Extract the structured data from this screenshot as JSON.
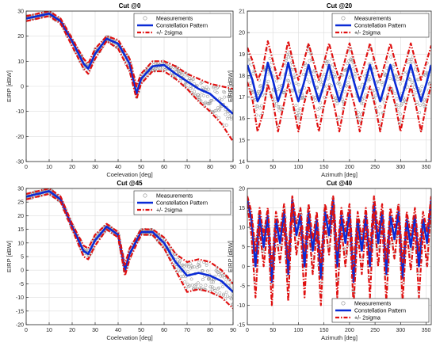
{
  "figure": {
    "ylabel": "EIRP [dBW]",
    "legend_labels": [
      "Measurements",
      "Constellation Pattern",
      "+/- 2sigma"
    ],
    "colors": {
      "measurements": "#8c8c8c",
      "pattern": "#0a2bd6",
      "sigma": "#e01010",
      "grid": "#dcdcdc"
    }
  },
  "chart_data": [
    {
      "type": "line",
      "title": "Cut @0",
      "xlabel": "Coelevation [deg]",
      "ylabel": "EIRP [dBW]",
      "xlim": [
        0,
        90
      ],
      "ylim": [
        -30,
        30
      ],
      "xticks": [
        0,
        10,
        20,
        30,
        40,
        50,
        60,
        70,
        80,
        90
      ],
      "yticks": [
        -30,
        -20,
        -10,
        0,
        10,
        20,
        30
      ],
      "grid": true,
      "legend": "top-right",
      "series": [
        {
          "name": "Constellation Pattern",
          "x": [
            0,
            5,
            10,
            15,
            20,
            25,
            27,
            30,
            35,
            40,
            45,
            48,
            50,
            55,
            60,
            65,
            70,
            75,
            80,
            85,
            90
          ],
          "y": [
            27,
            28,
            29,
            26,
            18,
            9,
            7,
            13,
            19,
            17,
            9,
            -3,
            3,
            8,
            8.5,
            5,
            2,
            -1,
            -3,
            -7,
            -11
          ]
        },
        {
          "name": "+/- 2sigma",
          "x": [
            0,
            5,
            10,
            15,
            20,
            25,
            27,
            30,
            35,
            40,
            45,
            48,
            50,
            55,
            60,
            65,
            70,
            75,
            80,
            85,
            90
          ],
          "y": [
            28,
            29,
            30,
            27,
            19,
            11,
            9,
            15,
            20,
            18.5,
            11,
            0,
            5,
            10,
            10,
            8,
            5,
            3,
            1,
            0,
            -1
          ]
        },
        {
          "name": "+/- 2sigma",
          "x": [
            0,
            5,
            10,
            15,
            20,
            25,
            27,
            30,
            35,
            40,
            45,
            48,
            50,
            55,
            60,
            65,
            70,
            75,
            80,
            85,
            90
          ],
          "y": [
            26,
            27,
            28,
            25,
            16,
            7,
            5,
            11,
            18,
            15,
            6,
            -5,
            1,
            6,
            6,
            3,
            -1,
            -6,
            -10,
            -15,
            -22
          ]
        }
      ]
    },
    {
      "type": "line",
      "title": "Cut @20",
      "xlabel": "Azimuth [deg]",
      "ylabel": "EIRP [dBW]",
      "xlim": [
        0,
        360
      ],
      "ylim": [
        14,
        21
      ],
      "xticks": [
        0,
        50,
        100,
        150,
        200,
        250,
        300,
        350
      ],
      "yticks": [
        14,
        15,
        16,
        17,
        18,
        19,
        20,
        21
      ],
      "grid": true,
      "legend": "top-right",
      "series": [
        {
          "name": "Constellation Pattern",
          "x": [
            0,
            10,
            20,
            30,
            40,
            50,
            60,
            70,
            80,
            90,
            100,
            110,
            120,
            130,
            140,
            150,
            160,
            170,
            180,
            190,
            200,
            210,
            220,
            230,
            240,
            250,
            260,
            270,
            280,
            290,
            300,
            310,
            320,
            330,
            340,
            350,
            360
          ],
          "y": [
            18.5,
            17.8,
            16.8,
            17.3,
            18.6,
            17.8,
            16.8,
            17.5,
            18.6,
            17.6,
            16.8,
            17.6,
            18.5,
            17.6,
            16.8,
            17.6,
            18.5,
            17.6,
            16.8,
            17.6,
            18.5,
            17.6,
            16.8,
            17.6,
            18.5,
            17.6,
            16.8,
            17.6,
            18.5,
            17.6,
            16.8,
            17.6,
            18.5,
            17.6,
            16.8,
            17.6,
            18.5
          ]
        },
        {
          "name": "+/- 2sigma",
          "x": [
            0,
            10,
            20,
            30,
            40,
            50,
            60,
            70,
            80,
            90,
            100,
            110,
            120,
            130,
            140,
            150,
            160,
            170,
            180,
            190,
            200,
            210,
            220,
            230,
            240,
            250,
            260,
            270,
            280,
            290,
            300,
            310,
            320,
            330,
            340,
            350,
            360
          ],
          "y": [
            19.3,
            18.7,
            17.8,
            18.3,
            19.6,
            18.7,
            17.8,
            18.5,
            19.6,
            18.6,
            17.8,
            18.6,
            19.5,
            18.6,
            17.8,
            18.6,
            19.5,
            18.6,
            17.8,
            18.6,
            19.5,
            18.6,
            17.8,
            18.6,
            19.5,
            18.6,
            17.8,
            18.6,
            19.5,
            18.6,
            17.8,
            18.6,
            19.5,
            18.6,
            17.8,
            18.6,
            19.4
          ]
        },
        {
          "name": "+/- 2sigma",
          "x": [
            0,
            10,
            20,
            30,
            40,
            50,
            60,
            70,
            80,
            90,
            100,
            110,
            120,
            130,
            140,
            150,
            160,
            170,
            180,
            190,
            200,
            210,
            220,
            230,
            240,
            250,
            260,
            270,
            280,
            290,
            300,
            310,
            320,
            330,
            340,
            350,
            360
          ],
          "y": [
            17.7,
            16.9,
            15.4,
            16.2,
            17.6,
            16.8,
            15.4,
            16.5,
            17.6,
            16.6,
            15.4,
            16.6,
            17.5,
            16.6,
            15.4,
            16.6,
            17.5,
            16.6,
            15.4,
            16.6,
            17.5,
            16.6,
            15.4,
            16.6,
            17.5,
            16.6,
            15.4,
            16.6,
            17.5,
            16.6,
            15.4,
            16.6,
            17.5,
            16.6,
            15.4,
            16.6,
            17.6
          ]
        }
      ]
    },
    {
      "type": "line",
      "title": "Cut @45",
      "xlabel": "Coelevation [deg]",
      "ylabel": "EIRP [dBW]",
      "xlim": [
        0,
        90
      ],
      "ylim": [
        -20,
        30
      ],
      "xticks": [
        0,
        10,
        20,
        30,
        40,
        50,
        60,
        70,
        80,
        90
      ],
      "yticks": [
        -20,
        -15,
        -10,
        -5,
        0,
        5,
        10,
        15,
        20,
        25,
        30
      ],
      "grid": true,
      "legend": "top-right",
      "series": [
        {
          "name": "Constellation Pattern",
          "x": [
            0,
            5,
            10,
            15,
            20,
            25,
            27,
            30,
            35,
            40,
            43,
            45,
            50,
            55,
            60,
            65,
            70,
            75,
            80,
            85,
            90
          ],
          "y": [
            27,
            28,
            29,
            26,
            16,
            7,
            6,
            11,
            16,
            13,
            0,
            6,
            14,
            14,
            10,
            3,
            -2,
            -1,
            -2,
            -4,
            -8
          ]
        },
        {
          "name": "+/- 2sigma",
          "x": [
            0,
            5,
            10,
            15,
            20,
            25,
            27,
            30,
            35,
            40,
            43,
            45,
            50,
            55,
            60,
            65,
            70,
            75,
            80,
            85,
            90
          ],
          "y": [
            28,
            29,
            30,
            27,
            17,
            9,
            8,
            13,
            17,
            14,
            2,
            8,
            15,
            15,
            12,
            6,
            3,
            4,
            3,
            0,
            -5
          ]
        },
        {
          "name": "+/- 2sigma",
          "x": [
            0,
            5,
            10,
            15,
            20,
            25,
            27,
            30,
            35,
            40,
            43,
            45,
            50,
            55,
            60,
            65,
            70,
            75,
            80,
            85,
            90
          ],
          "y": [
            26,
            27,
            28,
            25,
            15,
            5,
            4,
            9,
            15,
            12,
            -2,
            4,
            13,
            13,
            8,
            0,
            -8,
            -7,
            -8,
            -10,
            -14
          ]
        }
      ]
    },
    {
      "type": "line",
      "title": "Cut @40",
      "xlabel": "Azimuth [deg]",
      "ylabel": "EIRP [dBW]",
      "xlim": [
        0,
        360
      ],
      "ylim": [
        -15,
        20
      ],
      "xticks": [
        0,
        50,
        100,
        150,
        200,
        250,
        300,
        350
      ],
      "yticks": [
        -15,
        -10,
        -5,
        0,
        5,
        10,
        15,
        20
      ],
      "grid": true,
      "legend": "bottom-right",
      "series": [
        {
          "name": "Constellation Pattern",
          "x": [
            0,
            8,
            16,
            24,
            32,
            40,
            48,
            56,
            64,
            72,
            80,
            88,
            96,
            104,
            112,
            120,
            128,
            136,
            144,
            152,
            160,
            168,
            176,
            184,
            192,
            200,
            208,
            216,
            224,
            232,
            240,
            248,
            256,
            264,
            272,
            280,
            288,
            296,
            304,
            312,
            320,
            328,
            336,
            344,
            352,
            360
          ],
          "y": [
            17,
            12,
            0,
            13,
            5,
            13,
            -4,
            12,
            6,
            14,
            -2,
            17,
            8,
            13,
            0,
            14,
            4,
            12,
            -3,
            14,
            8,
            17,
            0,
            13,
            6,
            14,
            -4,
            12,
            4,
            13,
            0,
            16,
            6,
            14,
            -2,
            13,
            7,
            14,
            -3,
            12,
            5,
            13,
            0,
            12,
            6,
            17
          ]
        },
        {
          "name": "+/- 2sigma",
          "x": [
            0,
            8,
            16,
            24,
            32,
            40,
            48,
            56,
            64,
            72,
            80,
            88,
            96,
            104,
            112,
            120,
            128,
            136,
            144,
            152,
            160,
            168,
            176,
            184,
            192,
            200,
            208,
            216,
            224,
            232,
            240,
            248,
            256,
            264,
            272,
            280,
            288,
            296,
            304,
            312,
            320,
            328,
            336,
            344,
            352,
            360
          ],
          "y": [
            18,
            14,
            4,
            15,
            8,
            15,
            0,
            14,
            9,
            16,
            2,
            18,
            11,
            15,
            4,
            16,
            7,
            14,
            1,
            16,
            11,
            18,
            4,
            15,
            9,
            16,
            0,
            14,
            7,
            15,
            4,
            18,
            9,
            16,
            2,
            15,
            10,
            16,
            1,
            14,
            8,
            15,
            4,
            14,
            9,
            18
          ]
        },
        {
          "name": "+/- 2sigma",
          "x": [
            0,
            8,
            16,
            24,
            32,
            40,
            48,
            56,
            64,
            72,
            80,
            88,
            96,
            104,
            112,
            120,
            128,
            136,
            144,
            152,
            160,
            168,
            176,
            184,
            192,
            200,
            208,
            216,
            224,
            232,
            240,
            248,
            256,
            264,
            272,
            280,
            288,
            296,
            304,
            312,
            320,
            328,
            336,
            344,
            352,
            360
          ],
          "y": [
            16,
            8,
            -8,
            10,
            0,
            10,
            -10,
            9,
            1,
            11,
            -9,
            15,
            3,
            10,
            -8,
            11,
            -2,
            9,
            -10,
            11,
            3,
            15,
            -8,
            10,
            0,
            11,
            -10,
            9,
            -2,
            10,
            -8,
            14,
            0,
            11,
            -9,
            10,
            2,
            11,
            -9,
            9,
            -1,
            10,
            -8,
            9,
            0,
            16
          ]
        }
      ]
    }
  ]
}
